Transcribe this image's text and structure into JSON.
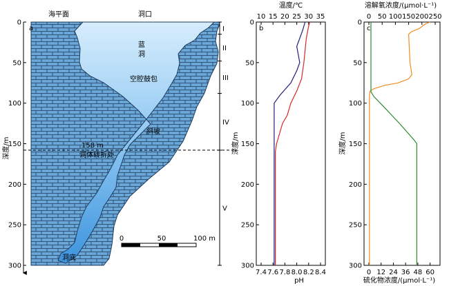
{
  "chart_data": [
    {
      "type": "diagram",
      "panel_label": "a",
      "labels": {
        "sea_level": "海平面",
        "entrance": "洞口",
        "name_char1": "蓝",
        "name_char2": "洞",
        "cavity": "空腔鼓包",
        "slope": "斜坡",
        "turn_depth": "158 m",
        "turn_point": "洞体转折处",
        "bottom": "洞底"
      },
      "ylabel": "深度/m",
      "ylim": [
        0,
        300
      ],
      "yticks": [
        0,
        50,
        100,
        150,
        200,
        250,
        300
      ],
      "scale_bar": {
        "ticks": [
          0,
          50,
          100
        ],
        "unit": "m",
        "label_end": "100 m"
      },
      "zones": [
        {
          "name": "I",
          "from": 0,
          "to": 15
        },
        {
          "name": "II",
          "from": 15,
          "to": 48
        },
        {
          "name": "III",
          "from": 48,
          "to": 88
        },
        {
          "name": "IV",
          "from": 88,
          "to": 158
        },
        {
          "name": "V",
          "from": 158,
          "to": 300
        }
      ],
      "turn_depth_value": 158,
      "colors": {
        "brick": "#6aa7d6",
        "water_top": "#c8e6fb",
        "water_bottom": "#4a9de0"
      }
    },
    {
      "type": "line",
      "panel_label": "b",
      "ylabel": "深度/m",
      "ylim": [
        0,
        300
      ],
      "yticks": [
        0,
        50,
        100,
        150,
        200,
        250,
        300
      ],
      "top_axis": {
        "label": "温度/℃",
        "range": [
          10,
          35
        ],
        "ticks": [
          10,
          15,
          20,
          25,
          30,
          35
        ],
        "color": "#d62728"
      },
      "bottom_axis": {
        "label": "pH",
        "range": [
          7.4,
          8.4
        ],
        "ticks": [
          "7.4",
          "7.6",
          "7.8",
          "8.0",
          "8.2",
          "8.4"
        ],
        "color": "#1f1f7a"
      },
      "series": [
        {
          "axis": "top",
          "color": "#d62728",
          "points": [
            [
              30.5,
              0
            ],
            [
              30,
              5
            ],
            [
              29,
              20
            ],
            [
              28,
              50
            ],
            [
              27,
              70
            ],
            [
              25,
              85
            ],
            [
              22.5,
              100
            ],
            [
              21,
              115
            ],
            [
              19,
              125
            ],
            [
              16.5,
              150
            ],
            [
              16,
              160
            ],
            [
              16,
              200
            ],
            [
              16,
              300
            ]
          ]
        },
        {
          "axis": "bottom",
          "color": "#1f1f7a",
          "points": [
            [
              8.14,
              0
            ],
            [
              8.1,
              10
            ],
            [
              8.0,
              30
            ],
            [
              8.05,
              50
            ],
            [
              8.0,
              60
            ],
            [
              7.9,
              75
            ],
            [
              7.72,
              90
            ],
            [
              7.62,
              100
            ],
            [
              7.62,
              200
            ],
            [
              7.62,
              300
            ]
          ]
        }
      ],
      "axis_color": "#000000"
    },
    {
      "type": "line",
      "panel_label": "c",
      "ylabel": "深度/m",
      "ylim": [
        0,
        300
      ],
      "yticks": [
        0,
        50,
        100,
        150,
        200,
        250,
        300
      ],
      "top_axis": {
        "label": "溶解氧浓度/(μmol·L⁻¹)",
        "range": [
          0,
          250
        ],
        "ticks": [
          0,
          50,
          100,
          150,
          200,
          250
        ],
        "color": "#f08c1e"
      },
      "bottom_axis": {
        "label": "硫化物浓度/(μmol·L⁻¹)",
        "range": [
          0,
          65
        ],
        "ticks": [
          0,
          12,
          24,
          36,
          48,
          60
        ],
        "color": "#2e8b2e"
      },
      "series": [
        {
          "axis": "top",
          "color": "#f08c1e",
          "points": [
            [
              230,
              0
            ],
            [
              210,
              3
            ],
            [
              190,
              8
            ],
            [
              160,
              12
            ],
            [
              150,
              15
            ],
            [
              152,
              30
            ],
            [
              155,
              50
            ],
            [
              160,
              60
            ],
            [
              162,
              65
            ],
            [
              150,
              70
            ],
            [
              110,
              75
            ],
            [
              60,
              78
            ],
            [
              20,
              82
            ],
            [
              5,
              85
            ],
            [
              2,
              90
            ],
            [
              2,
              100
            ],
            [
              2,
              150
            ],
            [
              2,
              300
            ]
          ]
        },
        {
          "axis": "bottom",
          "color": "#2e8b2e",
          "points": [
            [
              2,
              0
            ],
            [
              2,
              80
            ],
            [
              2,
              86
            ],
            [
              5,
              92
            ],
            [
              15,
              105
            ],
            [
              30,
              125
            ],
            [
              44,
              145
            ],
            [
              47,
              150
            ],
            [
              47,
              200
            ],
            [
              47,
              300
            ]
          ]
        }
      ],
      "axis_color": "#000000"
    }
  ]
}
